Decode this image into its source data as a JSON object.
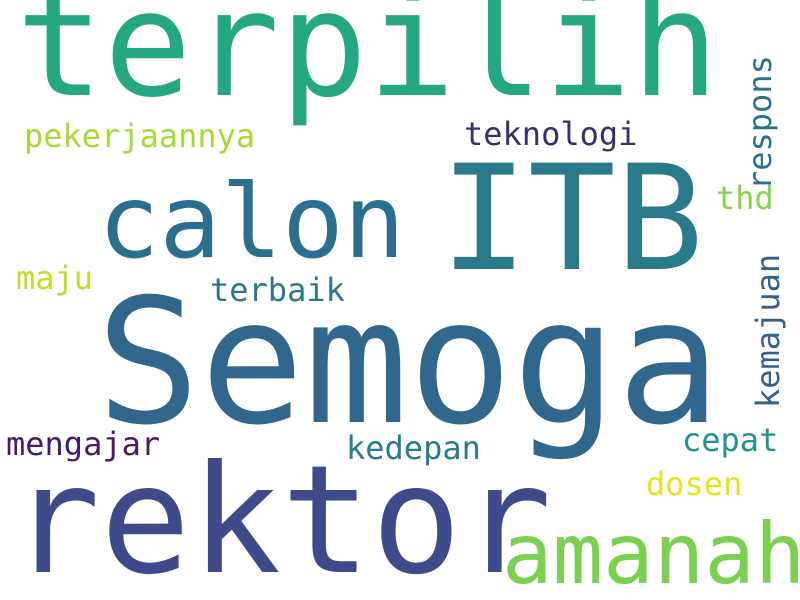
{
  "words": [
    {
      "key": "terpilih",
      "text": "terpilih",
      "color": "#25a882"
    },
    {
      "key": "itb",
      "text": "ITB",
      "color": "#2a7a8c"
    },
    {
      "key": "semoga",
      "text": "Semoga",
      "color": "#31668d"
    },
    {
      "key": "rektor",
      "text": "rektor",
      "color": "#3e4a89"
    },
    {
      "key": "calon",
      "text": "calon",
      "color": "#2b6f8e"
    },
    {
      "key": "amanah",
      "text": "amanah",
      "color": "#7ad151"
    },
    {
      "key": "pekerjaannya",
      "text": "pekerjaannya",
      "color": "#a5db36"
    },
    {
      "key": "teknologi",
      "text": "teknologi",
      "color": "#3b2f6b"
    },
    {
      "key": "respons",
      "text": "respons",
      "color": "#2c728e"
    },
    {
      "key": "thd",
      "text": "thd",
      "color": "#84d44b"
    },
    {
      "key": "kemajuan",
      "text": "kemajuan",
      "color": "#355f8d"
    },
    {
      "key": "maju",
      "text": "maju",
      "color": "#bddf26"
    },
    {
      "key": "terbaik",
      "text": "terbaik",
      "color": "#2a788e"
    },
    {
      "key": "mengajar",
      "text": "mengajar",
      "color": "#48186a"
    },
    {
      "key": "kedepan",
      "text": "kedepan",
      "color": "#287c8e"
    },
    {
      "key": "cepat",
      "text": "cepat",
      "color": "#20938c"
    },
    {
      "key": "dosen",
      "text": "dosen",
      "color": "#e7e419"
    }
  ]
}
